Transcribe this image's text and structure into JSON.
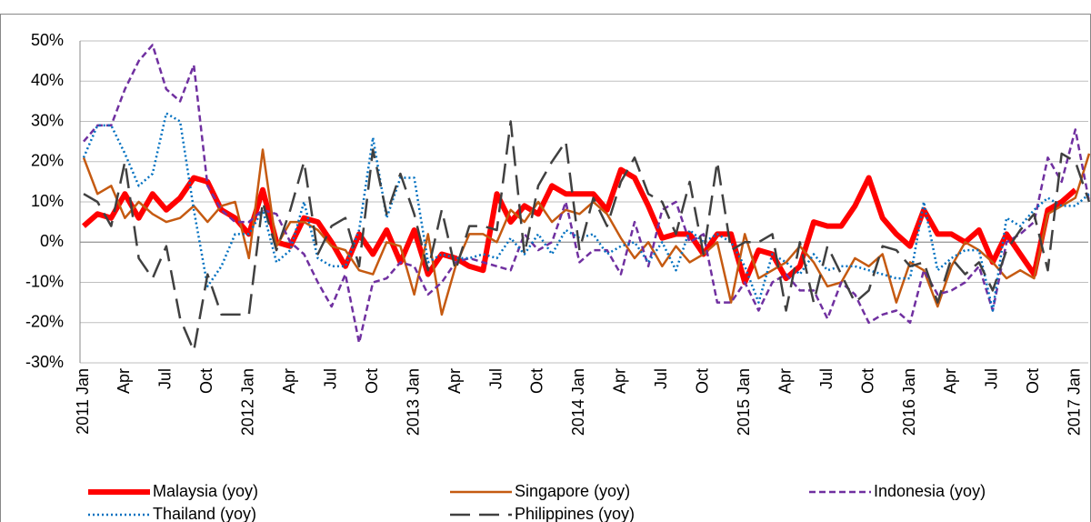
{
  "chart_data": {
    "type": "line",
    "categories": [
      "2011 Jan",
      null,
      null,
      "Apr",
      null,
      null,
      "Jul",
      null,
      null,
      "Oct",
      null,
      null,
      "2012 Jan",
      null,
      null,
      "Apr",
      null,
      null,
      "Jul",
      null,
      null,
      "Oct",
      null,
      null,
      "2013 Jan",
      null,
      null,
      "Apr",
      null,
      null,
      "Jul",
      null,
      null,
      "Oct",
      null,
      null,
      "2014 Jan",
      null,
      null,
      "Apr",
      null,
      null,
      "Jul",
      null,
      null,
      "Oct",
      null,
      null,
      "2015 Jan",
      null,
      null,
      "Apr",
      null,
      null,
      "Jul",
      null,
      null,
      "Oct",
      null,
      null,
      "2016 Jan",
      null,
      null,
      "Apr",
      null,
      null,
      "Jul",
      null,
      null,
      "Oct",
      null,
      null,
      "2017 Jan",
      null
    ],
    "series": [
      {
        "name": "Malaysia (yoy)",
        "color": "#ff0000",
        "values": [
          4,
          7,
          6,
          12,
          6,
          12,
          8,
          11,
          16,
          15,
          8,
          6,
          2,
          13,
          0,
          -1,
          6,
          5,
          0,
          -6,
          2,
          -3,
          3,
          -5,
          3,
          -8,
          -3,
          -4,
          -6,
          -7,
          12,
          5,
          9,
          7,
          14,
          12,
          12,
          12,
          8,
          18,
          16,
          9,
          1,
          2,
          2,
          -3,
          2,
          2,
          -10,
          -2,
          -3,
          -9,
          -6,
          5,
          4,
          4,
          9,
          16,
          6,
          2,
          -1,
          8,
          2,
          2,
          0,
          3,
          -5,
          2,
          -3,
          -8,
          8,
          10,
          13,
          null
        ]
      },
      {
        "name": "Singapore (yoy)",
        "color": "#c55a11",
        "values": [
          21,
          12,
          14,
          6,
          10,
          7,
          5,
          6,
          9,
          5,
          9,
          10,
          -4,
          23,
          -1,
          5,
          5,
          3,
          -1,
          -2,
          -7,
          -8,
          0,
          -1,
          -13,
          2,
          -18,
          -6,
          2,
          2,
          0,
          8,
          5,
          10,
          5,
          8,
          7,
          10,
          7,
          1,
          -4,
          0,
          -6,
          -1,
          -5,
          -3,
          0,
          -15,
          2,
          -9,
          -7,
          -5,
          -1,
          -5,
          -11,
          -10,
          -4,
          -6,
          -3,
          -15,
          -5,
          -7,
          -16,
          -6,
          0,
          -2,
          -5,
          -9,
          -7,
          -9,
          7,
          9,
          11,
          22
        ]
      },
      {
        "name": "Indonesia (yoy)",
        "color": "#7030a0",
        "values": [
          25,
          29,
          29,
          38,
          45,
          49,
          38,
          35,
          44,
          14,
          8,
          5,
          5,
          8,
          7,
          0,
          -3,
          -10,
          -16,
          -8,
          -25,
          -10,
          -9,
          -5,
          -6,
          -13,
          -10,
          -5,
          -4,
          -5,
          -6,
          -7,
          2,
          -2,
          0,
          10,
          -5,
          -2,
          -2,
          -8,
          5,
          -6,
          8,
          10,
          0,
          2,
          -15,
          -15,
          -10,
          -17,
          -10,
          -8,
          -12,
          -12,
          -19,
          -10,
          -13,
          -20,
          -18,
          -17,
          -20,
          -7,
          -13,
          -12,
          -10,
          -6,
          -17,
          0,
          2,
          5,
          21,
          15,
          28,
          10
        ]
      },
      {
        "name": "Thailand (yoy)",
        "color": "#0070c0",
        "values": [
          21,
          29,
          29,
          22,
          14,
          17,
          32,
          30,
          8,
          -11,
          -6,
          2,
          2,
          8,
          -5,
          -2,
          10,
          -4,
          -6,
          -6,
          3,
          26,
          6,
          16,
          16,
          -5,
          -3,
          -4,
          -4,
          -3,
          -4,
          1,
          -3,
          2,
          -3,
          3,
          1,
          2,
          -3,
          -1,
          0,
          -5,
          0,
          -7,
          3,
          0,
          2,
          0,
          -6,
          -15,
          -3,
          -5,
          -8,
          -3,
          -7,
          -6,
          -6,
          -7,
          -8,
          -9,
          -9,
          10,
          -7,
          -4,
          -2,
          -2,
          -17,
          6,
          4,
          8,
          11,
          9,
          9,
          12
        ]
      },
      {
        "name": "Philippines (yoy)",
        "color": "#404040",
        "values": [
          12,
          10,
          4,
          20,
          -4,
          -9,
          -1,
          -19,
          -27,
          -8,
          -18,
          -18,
          -18,
          10,
          -2,
          8,
          20,
          -3,
          4,
          6,
          -6,
          23,
          7,
          17,
          7,
          -7,
          8,
          -7,
          4,
          4,
          3,
          30,
          -3,
          14,
          20,
          25,
          -2,
          11,
          4,
          15,
          21,
          12,
          10,
          2,
          15,
          -3,
          20,
          -2,
          0,
          0,
          2,
          -17,
          0,
          -15,
          -1,
          -8,
          -15,
          -12,
          -1,
          -2,
          -6,
          -5,
          -15,
          -4,
          -8,
          -5,
          -12,
          -2,
          3,
          7,
          -7,
          22,
          20,
          10
        ]
      }
    ],
    "ylim": [
      -30,
      50
    ],
    "yticks": [
      {
        "value": -30,
        "label": "-30%"
      },
      {
        "value": -20,
        "label": "-20%"
      },
      {
        "value": -10,
        "label": "-10%"
      },
      {
        "value": 0,
        "label": "0%"
      },
      {
        "value": 10,
        "label": "10%"
      },
      {
        "value": 20,
        "label": "20%"
      },
      {
        "value": 30,
        "label": "30%"
      },
      {
        "value": 40,
        "label": "40%"
      },
      {
        "value": 50,
        "label": "50%"
      }
    ],
    "grid": true
  }
}
